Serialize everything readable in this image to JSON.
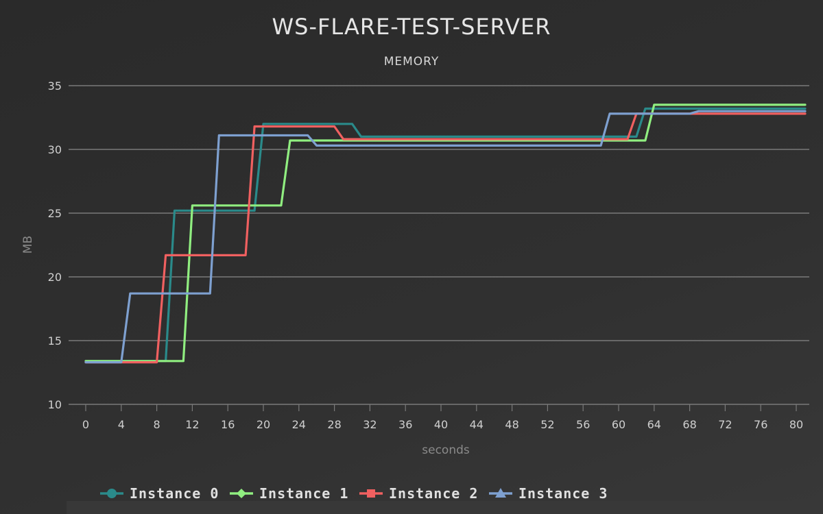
{
  "chart_data": {
    "type": "line",
    "title": "WS-FLARE-TEST-SERVER",
    "subtitle": "MEMORY",
    "xlabel": "seconds",
    "ylabel": "MB",
    "xlim": [
      0,
      80
    ],
    "ylim": [
      10,
      35
    ],
    "x_ticks": [
      0,
      4,
      8,
      12,
      16,
      20,
      24,
      28,
      32,
      36,
      40,
      44,
      48,
      52,
      56,
      60,
      64,
      68,
      72,
      76,
      80
    ],
    "y_ticks": [
      10,
      15,
      20,
      25,
      30,
      35
    ],
    "grid": true,
    "legend_position": "bottom-left",
    "series": [
      {
        "name": "Instance 0",
        "color": "#2a8a8a",
        "marker": "circle",
        "points": [
          [
            0,
            13.4
          ],
          [
            9,
            13.4
          ],
          [
            10,
            25.2
          ],
          [
            19,
            25.2
          ],
          [
            20,
            32.0
          ],
          [
            30,
            32.0
          ],
          [
            31,
            31.0
          ],
          [
            62,
            31.0
          ],
          [
            63,
            33.2
          ],
          [
            81,
            33.2
          ]
        ]
      },
      {
        "name": "Instance 1",
        "color": "#90ee80",
        "marker": "diamond",
        "points": [
          [
            0,
            13.4
          ],
          [
            11,
            13.4
          ],
          [
            12,
            25.6
          ],
          [
            22,
            25.6
          ],
          [
            23,
            30.7
          ],
          [
            63,
            30.7
          ],
          [
            64,
            33.5
          ],
          [
            81,
            33.5
          ]
        ]
      },
      {
        "name": "Instance 2",
        "color": "#f06060",
        "marker": "square",
        "points": [
          [
            0,
            13.3
          ],
          [
            8,
            13.3
          ],
          [
            9,
            21.7
          ],
          [
            18,
            21.7
          ],
          [
            19,
            31.8
          ],
          [
            28,
            31.8
          ],
          [
            29,
            30.8
          ],
          [
            61,
            30.8
          ],
          [
            62,
            32.8
          ],
          [
            81,
            32.8
          ]
        ]
      },
      {
        "name": "Instance 3",
        "color": "#7ea0d0",
        "marker": "triangle",
        "points": [
          [
            0,
            13.3
          ],
          [
            4,
            13.3
          ],
          [
            5,
            18.7
          ],
          [
            14,
            18.7
          ],
          [
            15,
            31.1
          ],
          [
            25,
            31.1
          ],
          [
            26,
            30.3
          ],
          [
            58,
            30.3
          ],
          [
            59,
            32.8
          ],
          [
            68,
            32.8
          ],
          [
            69,
            33.0
          ],
          [
            81,
            33.0
          ]
        ]
      }
    ]
  }
}
